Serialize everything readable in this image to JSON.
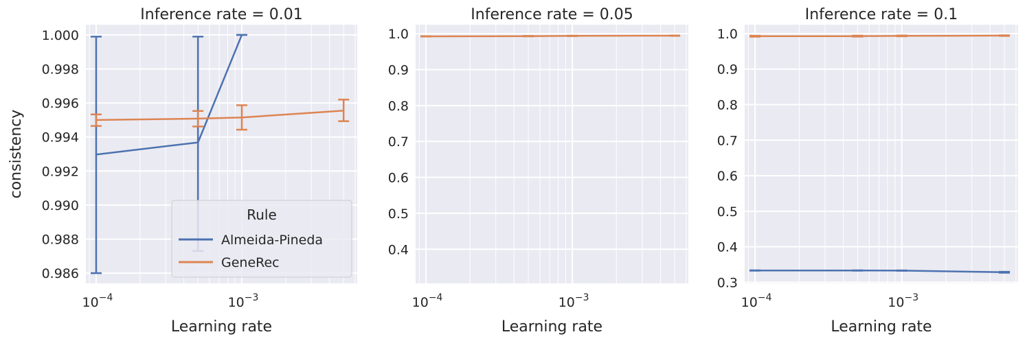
{
  "colors": {
    "series0": "#4c72b0",
    "series1": "#dd8452",
    "panel_bg": "#eaeaf2",
    "grid": "#ffffff"
  },
  "chart_data": [
    {
      "type": "line",
      "title": "Inference rate = 0.01",
      "xlabel": "Learning rate",
      "ylabel": "consistency",
      "xscale": "log",
      "xlim": [
        8.5e-05,
        0.0062
      ],
      "ylim": [
        0.9854,
        1.0006
      ],
      "yticks": [
        0.986,
        0.988,
        0.99,
        0.992,
        0.994,
        0.996,
        0.998,
        1.0
      ],
      "ytick_labels": [
        "0.986",
        "0.988",
        "0.990",
        "0.992",
        "0.994",
        "0.996",
        "0.998",
        "1.000"
      ],
      "xticks": [
        0.0001,
        0.001
      ],
      "xtick_labels": [
        {
          "base": "10",
          "exp": "−4"
        },
        {
          "base": "10",
          "exp": "−3"
        }
      ],
      "grid": true,
      "legend": {
        "title": "Rule",
        "placement": "lower-right",
        "entries": [
          "Almeida-Pineda",
          "GeneRec"
        ]
      },
      "series": [
        {
          "name": "Almeida-Pineda",
          "x": [
            0.0001,
            0.0005,
            0.001
          ],
          "y": [
            0.99297,
            0.99368,
            1.0
          ],
          "err_low": [
            0.986,
            0.9873,
            1.0
          ],
          "err_high": [
            0.9999,
            0.9999,
            1.0
          ]
        },
        {
          "name": "GeneRec",
          "x": [
            0.0001,
            0.0005,
            0.001,
            0.005
          ],
          "y": [
            0.995,
            0.99508,
            0.99515,
            0.99555
          ],
          "err_low": [
            0.99465,
            0.99462,
            0.99443,
            0.99493
          ],
          "err_high": [
            0.99533,
            0.99553,
            0.99587,
            0.9962
          ]
        }
      ]
    },
    {
      "type": "line",
      "title": "Inference rate = 0.05",
      "xlabel": "Learning rate",
      "ylabel": "",
      "xscale": "log",
      "xlim": [
        8.5e-05,
        0.0062
      ],
      "ylim": [
        0.305,
        1.025
      ],
      "yticks": [
        0.4,
        0.5,
        0.6,
        0.7,
        0.8,
        0.9,
        1.0
      ],
      "ytick_labels": [
        "0.4",
        "0.5",
        "0.6",
        "0.7",
        "0.8",
        "0.9",
        "1.0"
      ],
      "xticks": [
        0.0001,
        0.001
      ],
      "xtick_labels": [
        {
          "base": "10",
          "exp": "−4"
        },
        {
          "base": "10",
          "exp": "−3"
        }
      ],
      "grid": true,
      "series": [
        {
          "name": "GeneRec",
          "x": [
            0.0001,
            0.0005,
            0.001,
            0.005
          ],
          "y": [
            0.9925,
            0.9932,
            0.9938,
            0.9945
          ],
          "err_low": [
            0.992,
            0.9926,
            0.9932,
            0.994
          ],
          "err_high": [
            0.993,
            0.9938,
            0.9944,
            0.995
          ]
        }
      ]
    },
    {
      "type": "line",
      "title": "Inference rate = 0.1",
      "xlabel": "Learning rate",
      "ylabel": "",
      "xscale": "log",
      "xlim": [
        8.5e-05,
        0.0062
      ],
      "ylim": [
        0.297,
        1.025
      ],
      "yticks": [
        0.3,
        0.4,
        0.5,
        0.6,
        0.7,
        0.8,
        0.9,
        1.0
      ],
      "ytick_labels": [
        "0.3",
        "0.4",
        "0.5",
        "0.6",
        "0.7",
        "0.8",
        "0.9",
        "1.0"
      ],
      "xticks": [
        0.0001,
        0.001
      ],
      "xtick_labels": [
        {
          "base": "10",
          "exp": "−4"
        },
        {
          "base": "10",
          "exp": "−3"
        }
      ],
      "grid": true,
      "series": [
        {
          "name": "Almeida-Pineda",
          "x": [
            0.0001,
            0.0005,
            0.001,
            0.005
          ],
          "y": [
            0.3333,
            0.3333,
            0.333,
            0.3282
          ],
          "err_low": [
            0.3328,
            0.3328,
            0.3325,
            0.327
          ],
          "err_high": [
            0.3338,
            0.3338,
            0.3335,
            0.3295
          ]
        },
        {
          "name": "GeneRec",
          "x": [
            0.0001,
            0.0005,
            0.001,
            0.005
          ],
          "y": [
            0.9925,
            0.9928,
            0.9935,
            0.9943
          ],
          "err_low": [
            0.9912,
            0.9915,
            0.9925,
            0.9935
          ],
          "err_high": [
            0.9938,
            0.9941,
            0.9945,
            0.9951
          ]
        }
      ]
    }
  ]
}
